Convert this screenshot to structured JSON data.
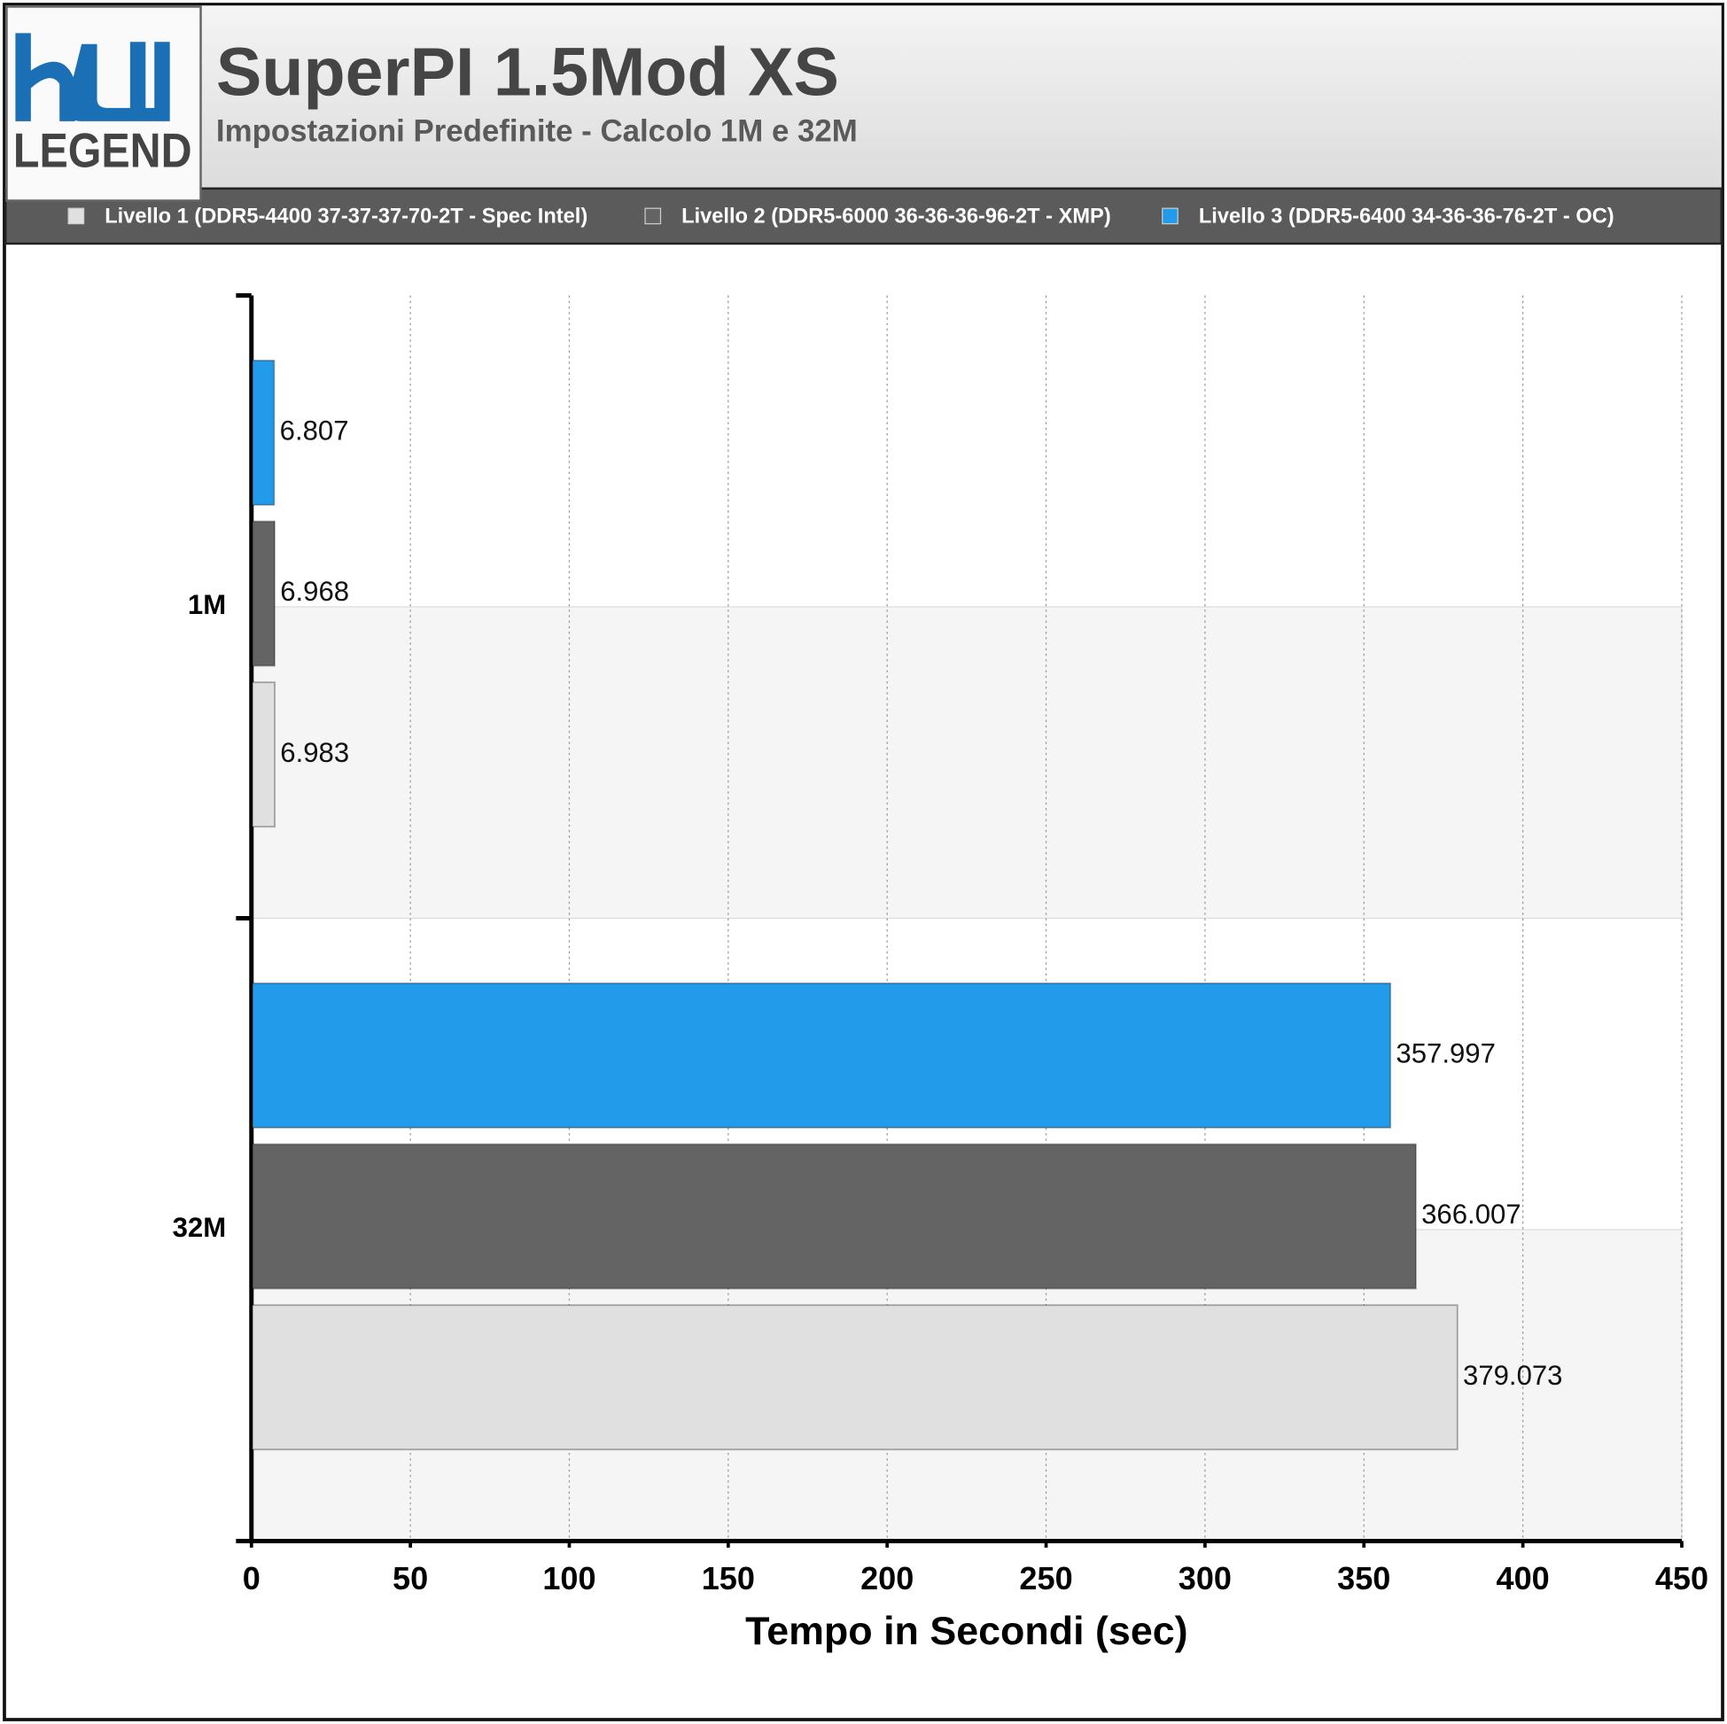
{
  "logo": {
    "text": "LEGEND"
  },
  "chart_data": {
    "type": "hbar",
    "title": "SuperPI 1.5Mod XS",
    "subtitle": "Impostazioni Predefinite - Calcolo 1M e 32M",
    "categories": [
      "1M",
      "32M"
    ],
    "series": [
      {
        "name": "Livello 1 (DDR5-4400 37-37-37-70-2T - Spec Intel)",
        "color": "#e0e0e0",
        "values": [
          6.983,
          379.073
        ]
      },
      {
        "name": "Livello 2 (DDR5-6000 36-36-36-96-2T - XMP)",
        "color": "#646464",
        "values": [
          6.968,
          366.007
        ]
      },
      {
        "name": "Livello 3 (DDR5-6400 34-36-36-76-2T - OC)",
        "color": "#219bea",
        "values": [
          6.807,
          357.997
        ]
      }
    ],
    "xlim": [
      0,
      450
    ],
    "xticks": [
      0,
      50,
      100,
      150,
      200,
      250,
      300,
      350,
      400,
      450
    ],
    "xlabel": "Tempo in Secondi (sec)",
    "grid": true
  }
}
